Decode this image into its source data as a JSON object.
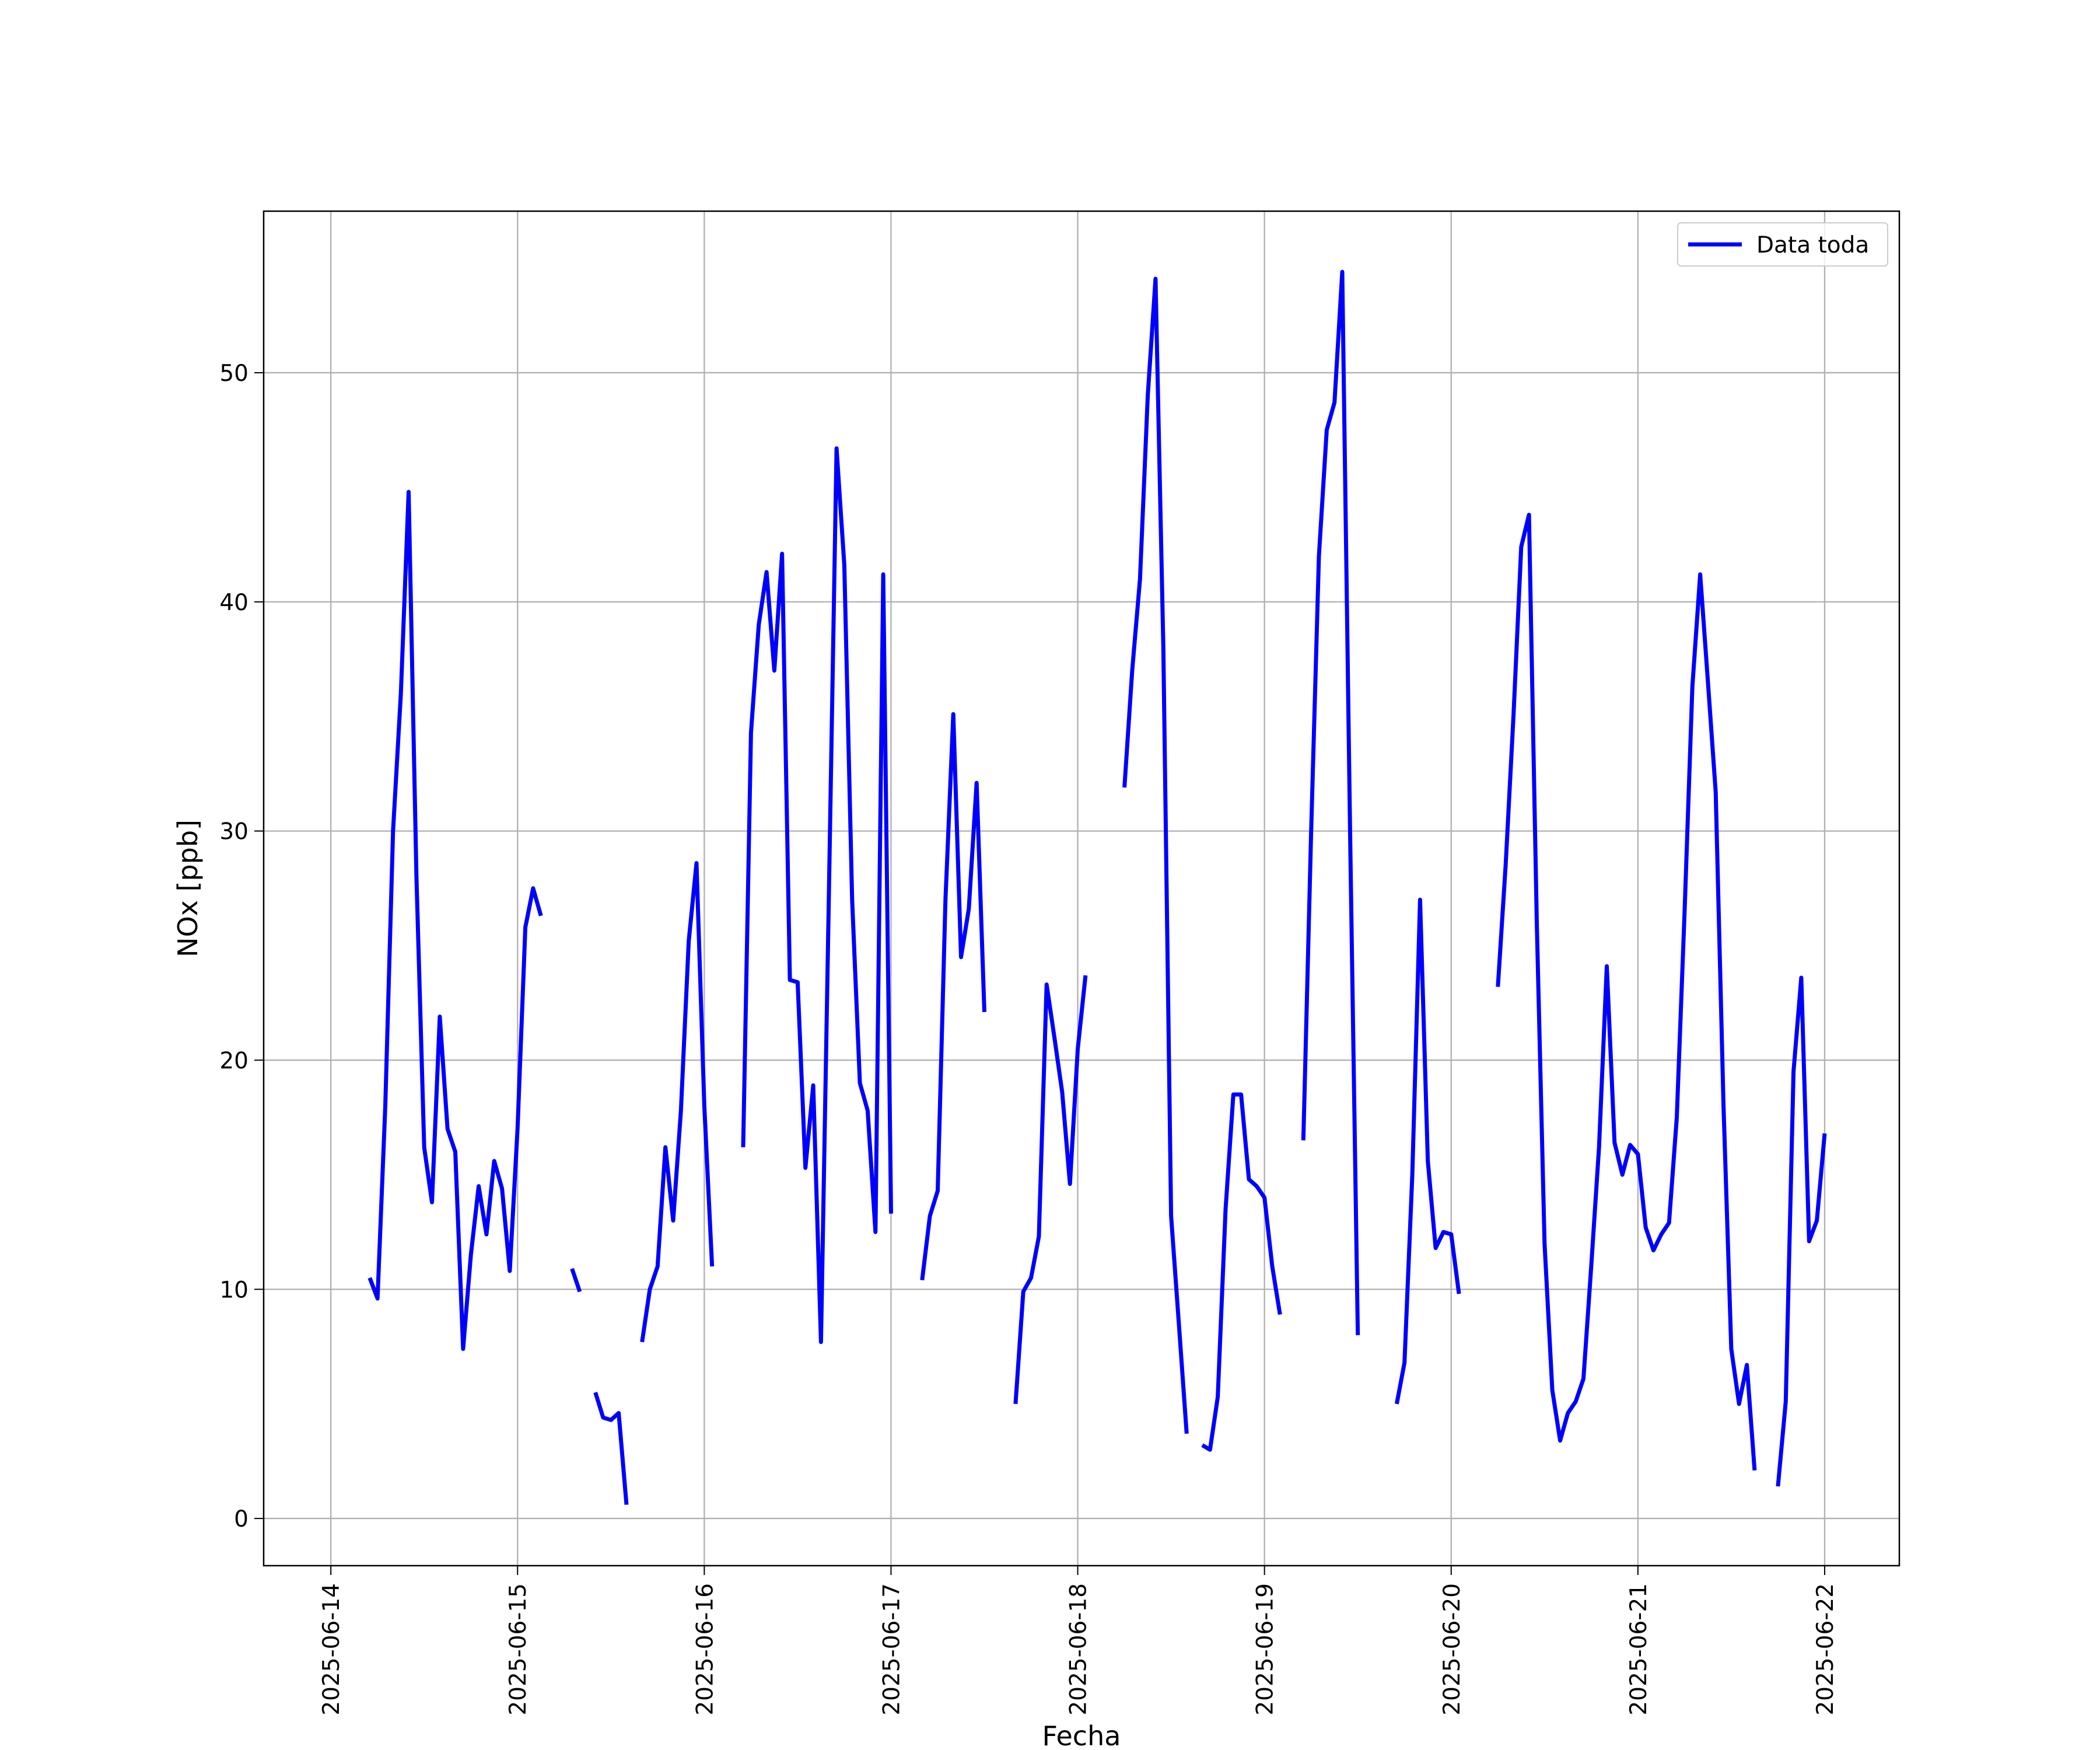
{
  "chart_data": {
    "type": "line",
    "x_label": "Fecha",
    "y_label": "NOx [ppb]",
    "xlim": [
      "2025-06-13 15:22",
      "2025-06-22 09:36"
    ],
    "xticks": [
      "2025-06-14",
      "2025-06-15",
      "2025-06-16",
      "2025-06-17",
      "2025-06-18",
      "2025-06-19",
      "2025-06-20",
      "2025-06-21",
      "2025-06-22"
    ],
    "ylim": [
      -2.06,
      57.05
    ],
    "yticks": [
      0,
      10,
      20,
      30,
      40,
      50
    ],
    "grid": true,
    "legend": "upper right",
    "x": [
      "2025-06-14 05:00",
      "2025-06-14 06:00",
      "2025-06-14 07:00",
      "2025-06-14 08:00",
      "2025-06-14 09:00",
      "2025-06-14 10:00",
      "2025-06-14 11:00",
      "2025-06-14 12:00",
      "2025-06-14 13:00",
      "2025-06-14 14:00",
      "2025-06-14 15:00",
      "2025-06-14 16:00",
      "2025-06-14 17:00",
      "2025-06-14 18:00",
      "2025-06-14 19:00",
      "2025-06-14 20:00",
      "2025-06-14 21:00",
      "2025-06-14 22:00",
      "2025-06-14 23:00",
      "2025-06-15 00:00",
      "2025-06-15 01:00",
      "2025-06-15 02:00",
      "2025-06-15 03:00",
      "2025-06-15 04:00",
      "2025-06-15 05:00",
      "2025-06-15 06:00",
      "2025-06-15 07:00",
      "2025-06-15 08:00",
      "2025-06-15 09:00",
      "2025-06-15 10:00",
      "2025-06-15 11:00",
      "2025-06-15 12:00",
      "2025-06-15 13:00",
      "2025-06-15 14:00",
      "2025-06-15 15:00",
      "2025-06-15 16:00",
      "2025-06-15 17:00",
      "2025-06-15 18:00",
      "2025-06-15 19:00",
      "2025-06-15 20:00",
      "2025-06-15 21:00",
      "2025-06-15 22:00",
      "2025-06-15 23:00",
      "2025-06-16 00:00",
      "2025-06-16 01:00",
      "2025-06-16 02:00",
      "2025-06-16 03:00",
      "2025-06-16 04:00",
      "2025-06-16 05:00",
      "2025-06-16 06:00",
      "2025-06-16 07:00",
      "2025-06-16 08:00",
      "2025-06-16 09:00",
      "2025-06-16 10:00",
      "2025-06-16 11:00",
      "2025-06-16 12:00",
      "2025-06-16 13:00",
      "2025-06-16 14:00",
      "2025-06-16 15:00",
      "2025-06-16 16:00",
      "2025-06-16 17:00",
      "2025-06-16 18:00",
      "2025-06-16 19:00",
      "2025-06-16 20:00",
      "2025-06-16 21:00",
      "2025-06-16 22:00",
      "2025-06-16 23:00",
      "2025-06-17 00:00",
      "2025-06-17 01:00",
      "2025-06-17 02:00",
      "2025-06-17 03:00",
      "2025-06-17 04:00",
      "2025-06-17 05:00",
      "2025-06-17 06:00",
      "2025-06-17 07:00",
      "2025-06-17 08:00",
      "2025-06-17 09:00",
      "2025-06-17 10:00",
      "2025-06-17 11:00",
      "2025-06-17 12:00",
      "2025-06-17 13:00",
      "2025-06-17 14:00",
      "2025-06-17 15:00",
      "2025-06-17 16:00",
      "2025-06-17 17:00",
      "2025-06-17 18:00",
      "2025-06-17 19:00",
      "2025-06-17 20:00",
      "2025-06-17 21:00",
      "2025-06-17 22:00",
      "2025-06-17 23:00",
      "2025-06-18 00:00",
      "2025-06-18 01:00",
      "2025-06-18 02:00",
      "2025-06-18 03:00",
      "2025-06-18 04:00",
      "2025-06-18 05:00",
      "2025-06-18 06:00",
      "2025-06-18 07:00",
      "2025-06-18 08:00",
      "2025-06-18 09:00",
      "2025-06-18 10:00",
      "2025-06-18 11:00",
      "2025-06-18 12:00",
      "2025-06-18 13:00",
      "2025-06-18 14:00",
      "2025-06-18 15:00",
      "2025-06-18 16:00",
      "2025-06-18 17:00",
      "2025-06-18 18:00",
      "2025-06-18 19:00",
      "2025-06-18 20:00",
      "2025-06-18 21:00",
      "2025-06-18 22:00",
      "2025-06-18 23:00",
      "2025-06-19 00:00",
      "2025-06-19 01:00",
      "2025-06-19 02:00",
      "2025-06-19 03:00",
      "2025-06-19 04:00",
      "2025-06-19 05:00",
      "2025-06-19 06:00",
      "2025-06-19 07:00",
      "2025-06-19 08:00",
      "2025-06-19 09:00",
      "2025-06-19 10:00",
      "2025-06-19 11:00",
      "2025-06-19 12:00",
      "2025-06-19 13:00",
      "2025-06-19 14:00",
      "2025-06-19 15:00",
      "2025-06-19 16:00",
      "2025-06-19 17:00",
      "2025-06-19 18:00",
      "2025-06-19 19:00",
      "2025-06-19 20:00",
      "2025-06-19 21:00",
      "2025-06-19 22:00",
      "2025-06-19 23:00",
      "2025-06-20 00:00",
      "2025-06-20 01:00",
      "2025-06-20 02:00",
      "2025-06-20 03:00",
      "2025-06-20 04:00",
      "2025-06-20 05:00",
      "2025-06-20 06:00",
      "2025-06-20 07:00",
      "2025-06-20 08:00",
      "2025-06-20 09:00",
      "2025-06-20 10:00",
      "2025-06-20 11:00",
      "2025-06-20 12:00",
      "2025-06-20 13:00",
      "2025-06-20 14:00",
      "2025-06-20 15:00",
      "2025-06-20 16:00",
      "2025-06-20 17:00",
      "2025-06-20 18:00",
      "2025-06-20 19:00",
      "2025-06-20 20:00",
      "2025-06-20 21:00",
      "2025-06-20 22:00",
      "2025-06-20 23:00",
      "2025-06-21 00:00",
      "2025-06-21 01:00",
      "2025-06-21 02:00",
      "2025-06-21 03:00",
      "2025-06-21 04:00",
      "2025-06-21 05:00",
      "2025-06-21 06:00",
      "2025-06-21 07:00",
      "2025-06-21 08:00",
      "2025-06-21 09:00",
      "2025-06-21 10:00",
      "2025-06-21 11:00",
      "2025-06-21 12:00",
      "2025-06-21 13:00",
      "2025-06-21 14:00",
      "2025-06-21 15:00",
      "2025-06-21 16:00",
      "2025-06-21 17:00",
      "2025-06-21 18:00",
      "2025-06-21 19:00",
      "2025-06-21 20:00",
      "2025-06-21 21:00",
      "2025-06-21 22:00",
      "2025-06-21 23:00",
      "2025-06-22 00:00"
    ],
    "series": [
      {
        "name": "Data toda",
        "color": "#0000ff",
        "values": [
          10.5,
          9.6,
          18,
          30,
          36,
          44.8,
          28,
          16.2,
          13.8,
          21.9,
          17,
          16,
          7.4,
          11.5,
          14.5,
          12.4,
          15.6,
          14.4,
          10.8,
          17,
          25.8,
          27.5,
          26.3,
          null,
          null,
          null,
          10.9,
          9.9,
          null,
          5.5,
          4.4,
          4.3,
          4.6,
          0.6,
          null,
          7.7,
          10,
          11,
          16.2,
          13,
          17.8,
          25.2,
          28.6,
          18,
          11,
          null,
          null,
          null,
          16.2,
          34.3,
          39,
          41.3,
          37,
          42.1,
          23.5,
          23.4,
          15.3,
          18.9,
          7.7,
          27,
          46.7,
          41.6,
          27,
          19,
          17.8,
          12.5,
          41.2,
          13.3,
          null,
          null,
          null,
          10.4,
          13.2,
          14.3,
          27,
          35.1,
          24.5,
          26.6,
          32.1,
          22.1,
          null,
          null,
          null,
          5,
          9.9,
          10.5,
          12.3,
          23.3,
          21,
          18.6,
          14.6,
          20.5,
          23.7,
          null,
          null,
          null,
          null,
          31.9,
          37,
          41,
          49,
          54.1,
          38,
          13.2,
          8.5,
          3.7,
          null,
          3.2,
          3.0,
          5.3,
          13.5,
          18.5,
          18.5,
          14.8,
          14.5,
          14,
          11,
          8.9,
          null,
          null,
          16.5,
          30,
          42,
          47.5,
          48.7,
          54.4,
          30,
          8,
          null,
          null,
          null,
          null,
          5,
          6.8,
          15,
          27,
          15.6,
          11.8,
          12.5,
          12.4,
          9.8,
          null,
          null,
          null,
          null,
          23.2,
          28.5,
          35,
          42.4,
          43.8,
          26,
          12,
          5.6,
          3.4,
          4.6,
          5.1,
          6.1,
          11,
          16.2,
          24.1,
          16.4,
          15,
          16.3,
          15.9,
          12.7,
          11.7,
          12.4,
          12.9,
          17.5,
          26.5,
          36.3,
          41.2,
          36.5,
          31.7,
          18,
          7.4,
          5,
          6.7,
          2.1,
          null,
          null,
          1.4,
          5.1,
          19.5,
          23.6,
          12.1,
          13,
          16.8
        ]
      }
    ]
  }
}
